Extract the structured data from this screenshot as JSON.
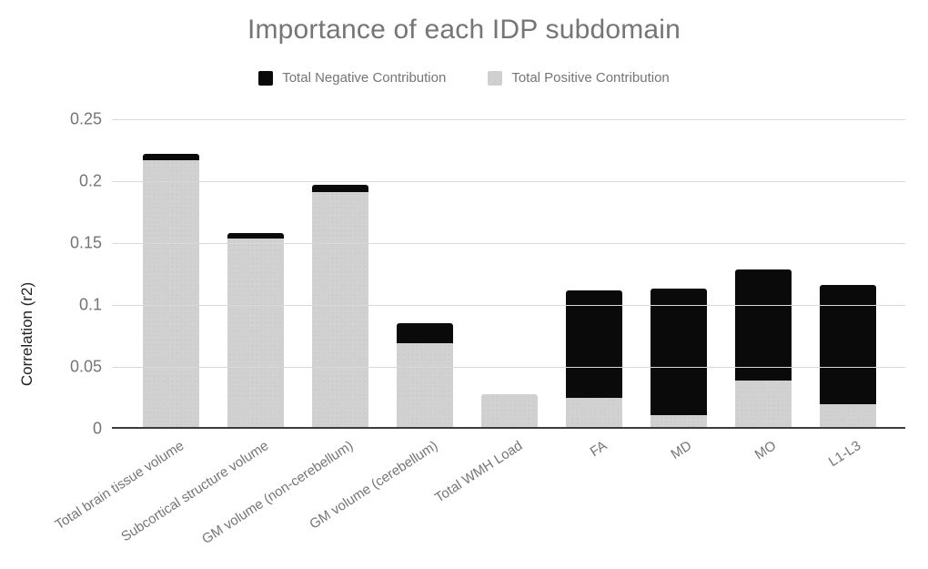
{
  "title": "Importance of each IDP subdomain",
  "y_axis": {
    "title": "Correlation (r2)",
    "tick_values": [
      0,
      0.05,
      0.1,
      0.15,
      0.2,
      0.25
    ],
    "tick_labels": [
      "0",
      "0.05",
      "0.1",
      "0.15",
      "0.2",
      "0.25"
    ]
  },
  "legend": [
    {
      "label": "Total Negative Contribution",
      "color": "#0a0a0a"
    },
    {
      "label": "Total Positive Contribution",
      "color": "#cfcfcf"
    }
  ],
  "colors": {
    "negative_bar": "#0a0a0a",
    "positive_bar": "#d1d1d1",
    "gridline": "#d9d9d9",
    "axis_line": "#3c3c3c",
    "muted_text": "#757575"
  },
  "chart_data": {
    "type": "bar",
    "stacked": true,
    "title": "Importance of each IDP subdomain",
    "xlabel": "",
    "ylabel": "Correlation (r2)",
    "ylim": [
      0,
      0.25
    ],
    "grid": true,
    "legend_position": "top",
    "categories": [
      "Total brain tissue volume",
      "Subcortical structure volume",
      "GM volume (non-cerebellum)",
      "GM volume (cerebellum)",
      "Total WMH Load",
      "FA",
      "MD",
      "MO",
      "L1-L3"
    ],
    "series": [
      {
        "name": "Total Positive Contribution",
        "color": "#d1d1d1",
        "values": [
          0.217,
          0.154,
          0.191,
          0.069,
          0.028,
          0.025,
          0.011,
          0.039,
          0.02
        ]
      },
      {
        "name": "Total Negative Contribution",
        "color": "#0a0a0a",
        "values": [
          0.005,
          0.004,
          0.006,
          0.016,
          0,
          0.087,
          0.102,
          0.09,
          0.096
        ]
      }
    ],
    "stack_totals": [
      0.222,
      0.158,
      0.197,
      0.085,
      0.028,
      0.112,
      0.113,
      0.129,
      0.116
    ]
  }
}
